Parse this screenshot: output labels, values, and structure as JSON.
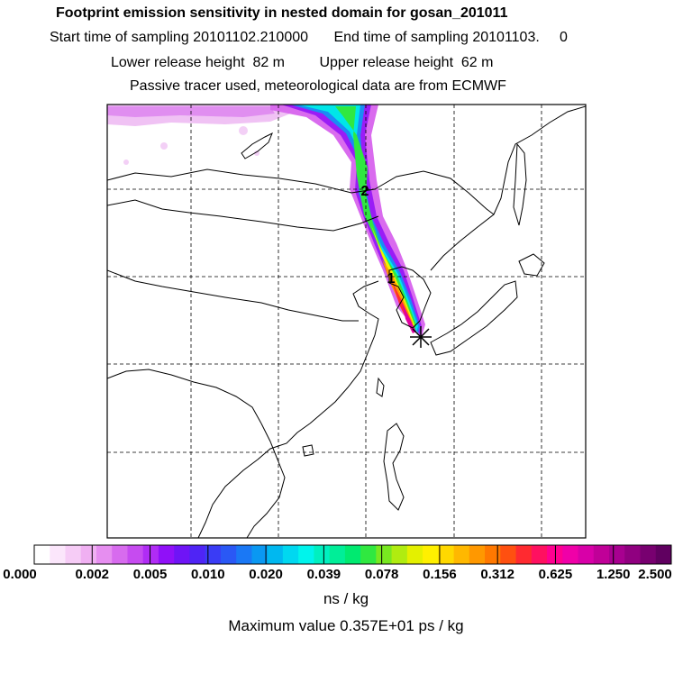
{
  "title": "Footprint emission sensitivity in nested domain for gosan_201011",
  "sampling": {
    "start_label": "Start time of sampling",
    "start_value": "20101102.210000",
    "end_label": "End time of sampling",
    "end_value": "20101103.     0"
  },
  "release": {
    "lower_label": "Lower release height",
    "lower_value": "82 m",
    "upper_label": "Upper release height",
    "upper_value": "62 m"
  },
  "note": "Passive tracer used, meteorological data are from ECMWF",
  "plume_markers": [
    "2",
    "1"
  ],
  "colorbar": {
    "labels": [
      "0.000",
      "0.002",
      "0.005",
      "0.010",
      "0.020",
      "0.039",
      "0.078",
      "0.156",
      "0.312",
      "0.625",
      "1.250",
      "2.500"
    ],
    "unit": "ns / kg",
    "colors": [
      "#ffffff",
      "#fbe6fb",
      "#f6ccf6",
      "#f0b0f2",
      "#e68ef0",
      "#d76bee",
      "#c64bf0",
      "#b02cf5",
      "#9010f8",
      "#6f14f6",
      "#4f24f5",
      "#3a3cf5",
      "#2a58f5",
      "#1a78f5",
      "#0a98f2",
      "#00b8f0",
      "#00d8f0",
      "#00f4ec",
      "#00f0c0",
      "#00ee98",
      "#00ea70",
      "#30e840",
      "#78e820",
      "#b0ec10",
      "#e4f000",
      "#fff000",
      "#ffd800",
      "#ffb800",
      "#ff9800",
      "#ff7800",
      "#ff5010",
      "#ff2a30",
      "#ff1060",
      "#ff0090",
      "#f000a8",
      "#d800a8",
      "#c00098",
      "#a80090",
      "#900080",
      "#780070",
      "#600060"
    ]
  },
  "max_value": "Maximum value  0.357E+01 ps / kg",
  "colors": {
    "station": "#000000",
    "grid": "#000000"
  }
}
